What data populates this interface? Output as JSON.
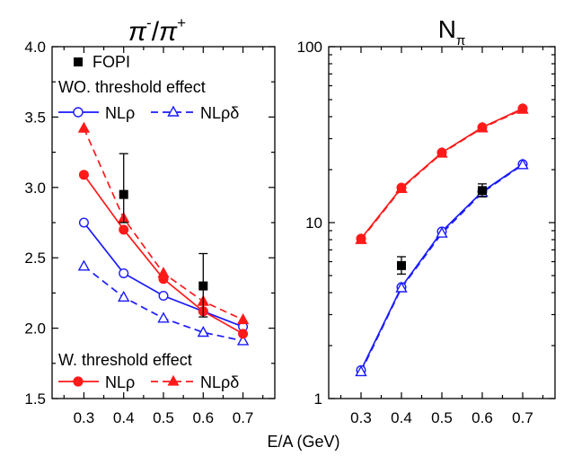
{
  "xlabel": "E/A (GeV)",
  "chart_data": [
    {
      "type": "line",
      "title": "π⁻/π⁺",
      "title_main": "π",
      "title_sup1": "-",
      "title_slash": "/",
      "title_sup2": "+",
      "xlabel": "E/A (GeV)",
      "ylabel": "",
      "xlim": [
        0.22,
        0.78
      ],
      "ylim": [
        1.5,
        4.0
      ],
      "yscale": "linear",
      "xticks": [
        "0.3",
        "0.4",
        "0.5",
        "0.6",
        "0.7"
      ],
      "yticks": [
        "1.5",
        "2.0",
        "2.5",
        "3.0",
        "3.5",
        "4.0"
      ],
      "legend_placement": "top-left and bottom-left",
      "legend": {
        "fopi_label": "FOPI",
        "group_wo_label": "WO. threshold effect",
        "group_w_label": "W. threshold effect",
        "nlrho_label": "NLρ",
        "nlrhodelta_label": "NLρδ"
      },
      "x": [
        0.3,
        0.4,
        0.5,
        0.6,
        0.7
      ],
      "series": [
        {
          "group": "WO. threshold effect",
          "model": "NLρ",
          "color": "#1a1aff",
          "marker": "open-circle",
          "dash": false,
          "values": [
            2.75,
            2.39,
            2.23,
            2.12,
            2.01
          ]
        },
        {
          "group": "WO. threshold effect",
          "model": "NLρδ",
          "color": "#1a1aff",
          "marker": "open-triangle",
          "dash": true,
          "values": [
            2.44,
            2.22,
            2.07,
            1.97,
            1.91
          ]
        },
        {
          "group": "W. threshold effect",
          "model": "NLρ",
          "color": "#ff1a1a",
          "marker": "filled-circle",
          "dash": false,
          "values": [
            3.09,
            2.7,
            2.35,
            2.12,
            1.96
          ]
        },
        {
          "group": "W. threshold effect",
          "model": "NLρδ",
          "color": "#ff1a1a",
          "marker": "filled-triangle",
          "dash": true,
          "values": [
            3.42,
            2.78,
            2.39,
            2.19,
            2.06
          ]
        }
      ],
      "experiment": {
        "name": "FOPI",
        "color": "#000000",
        "marker": "filled-square",
        "x": [
          0.4,
          0.6
        ],
        "values": [
          2.95,
          2.3
        ],
        "err_low": [
          0.2,
          0.22
        ],
        "err_high": [
          0.29,
          0.23
        ]
      }
    },
    {
      "type": "line",
      "title": "Nπ",
      "title_main": "N",
      "title_sub": "π",
      "xlabel": "E/A (GeV)",
      "ylabel": "",
      "xlim": [
        0.22,
        0.78
      ],
      "ylim": [
        1,
        100
      ],
      "yscale": "log",
      "xticks": [
        "0.3",
        "0.4",
        "0.5",
        "0.6",
        "0.7"
      ],
      "yticks": [
        "1",
        "10",
        "100"
      ],
      "x": [
        0.3,
        0.4,
        0.5,
        0.6,
        0.7
      ],
      "series": [
        {
          "group": "WO. threshold effect",
          "model": "NLρ",
          "color": "#1a1aff",
          "marker": "open-circle",
          "dash": false,
          "values": [
            1.45,
            4.3,
            8.9,
            15.0,
            21.5
          ]
        },
        {
          "group": "WO. threshold effect",
          "model": "NLρδ",
          "color": "#1a1aff",
          "marker": "open-triangle",
          "dash": true,
          "values": [
            1.42,
            4.25,
            8.7,
            14.8,
            21.3
          ]
        },
        {
          "group": "W. threshold effect",
          "model": "NLρ",
          "color": "#ff1a1a",
          "marker": "filled-circle",
          "dash": false,
          "values": [
            8.1,
            15.8,
            25.0,
            34.8,
            44.5
          ]
        },
        {
          "group": "W. threshold effect",
          "model": "NLρδ",
          "color": "#ff1a1a",
          "marker": "filled-triangle",
          "dash": true,
          "values": [
            8.0,
            15.6,
            24.8,
            34.5,
            44.0
          ]
        }
      ],
      "experiment": {
        "name": "FOPI",
        "color": "#000000",
        "marker": "filled-square",
        "x": [
          0.4,
          0.6
        ],
        "values": [
          5.7,
          15.2
        ],
        "err_low": [
          0.6,
          1.2
        ],
        "err_high": [
          0.7,
          1.4
        ]
      }
    }
  ]
}
